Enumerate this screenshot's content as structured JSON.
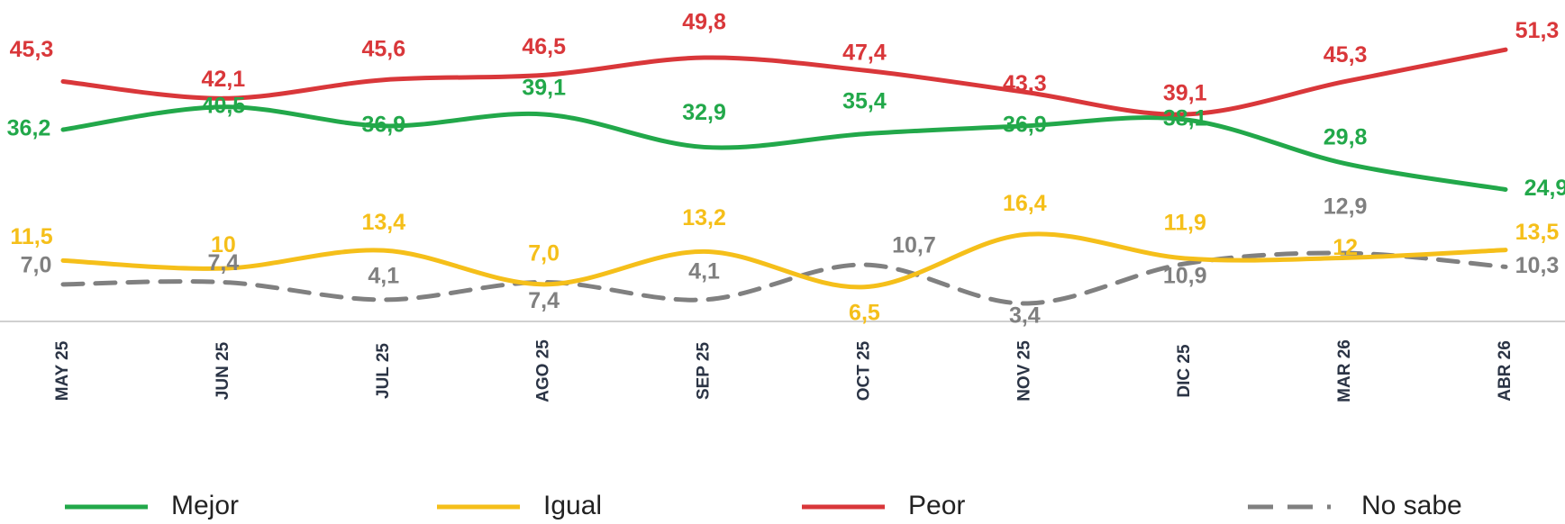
{
  "chart_data": {
    "type": "line",
    "categories": [
      "MAY 25",
      "JUN 25",
      "JUL 25",
      "AGO 25",
      "SEP 25",
      "OCT 25",
      "NOV 25",
      "DIC 25",
      "MAR 26",
      "ABR 26"
    ],
    "ylim": [
      0,
      60
    ],
    "series": [
      {
        "name": "Mejor",
        "color": "#22a84a",
        "dashed": false,
        "values": [
          36.2,
          40.5,
          36.9,
          39.1,
          32.9,
          35.4,
          36.9,
          38.1,
          29.8,
          24.9
        ],
        "value_labels": [
          "36,2",
          "40,5",
          "36,9",
          "39,1",
          "32,9",
          "35,4",
          "36,9",
          "38,1",
          "29,8",
          "24,9"
        ]
      },
      {
        "name": "Igual",
        "color": "#f5bf1a",
        "dashed": false,
        "values": [
          11.5,
          10,
          13.4,
          7.0,
          13.2,
          6.5,
          16.4,
          11.9,
          12,
          13.5
        ],
        "value_labels": [
          "11,5",
          "10",
          "13,4",
          "7,0",
          "13,2",
          "6,5",
          "16,4",
          "11,9",
          "12",
          "13,5"
        ]
      },
      {
        "name": "Peor",
        "color": "#d9373a",
        "dashed": false,
        "values": [
          45.3,
          42.1,
          45.6,
          46.5,
          49.8,
          47.4,
          43.3,
          39.1,
          45.3,
          51.3
        ],
        "value_labels": [
          "45,3",
          "42,1",
          "45,6",
          "46,5",
          "49,8",
          "47,4",
          "43,3",
          "39,1",
          "45,3",
          "51,3"
        ]
      },
      {
        "name": "No sabe",
        "color": "#808080",
        "dashed": true,
        "values": [
          7.0,
          7.4,
          4.1,
          7.4,
          4.1,
          10.7,
          3.4,
          10.9,
          12.9,
          10.3
        ],
        "value_labels": [
          "7,0",
          "7,4",
          "4,1",
          "7,4",
          "4,1",
          "10,7",
          "3,4",
          "10,9",
          "12,9",
          "10,3"
        ]
      }
    ]
  }
}
